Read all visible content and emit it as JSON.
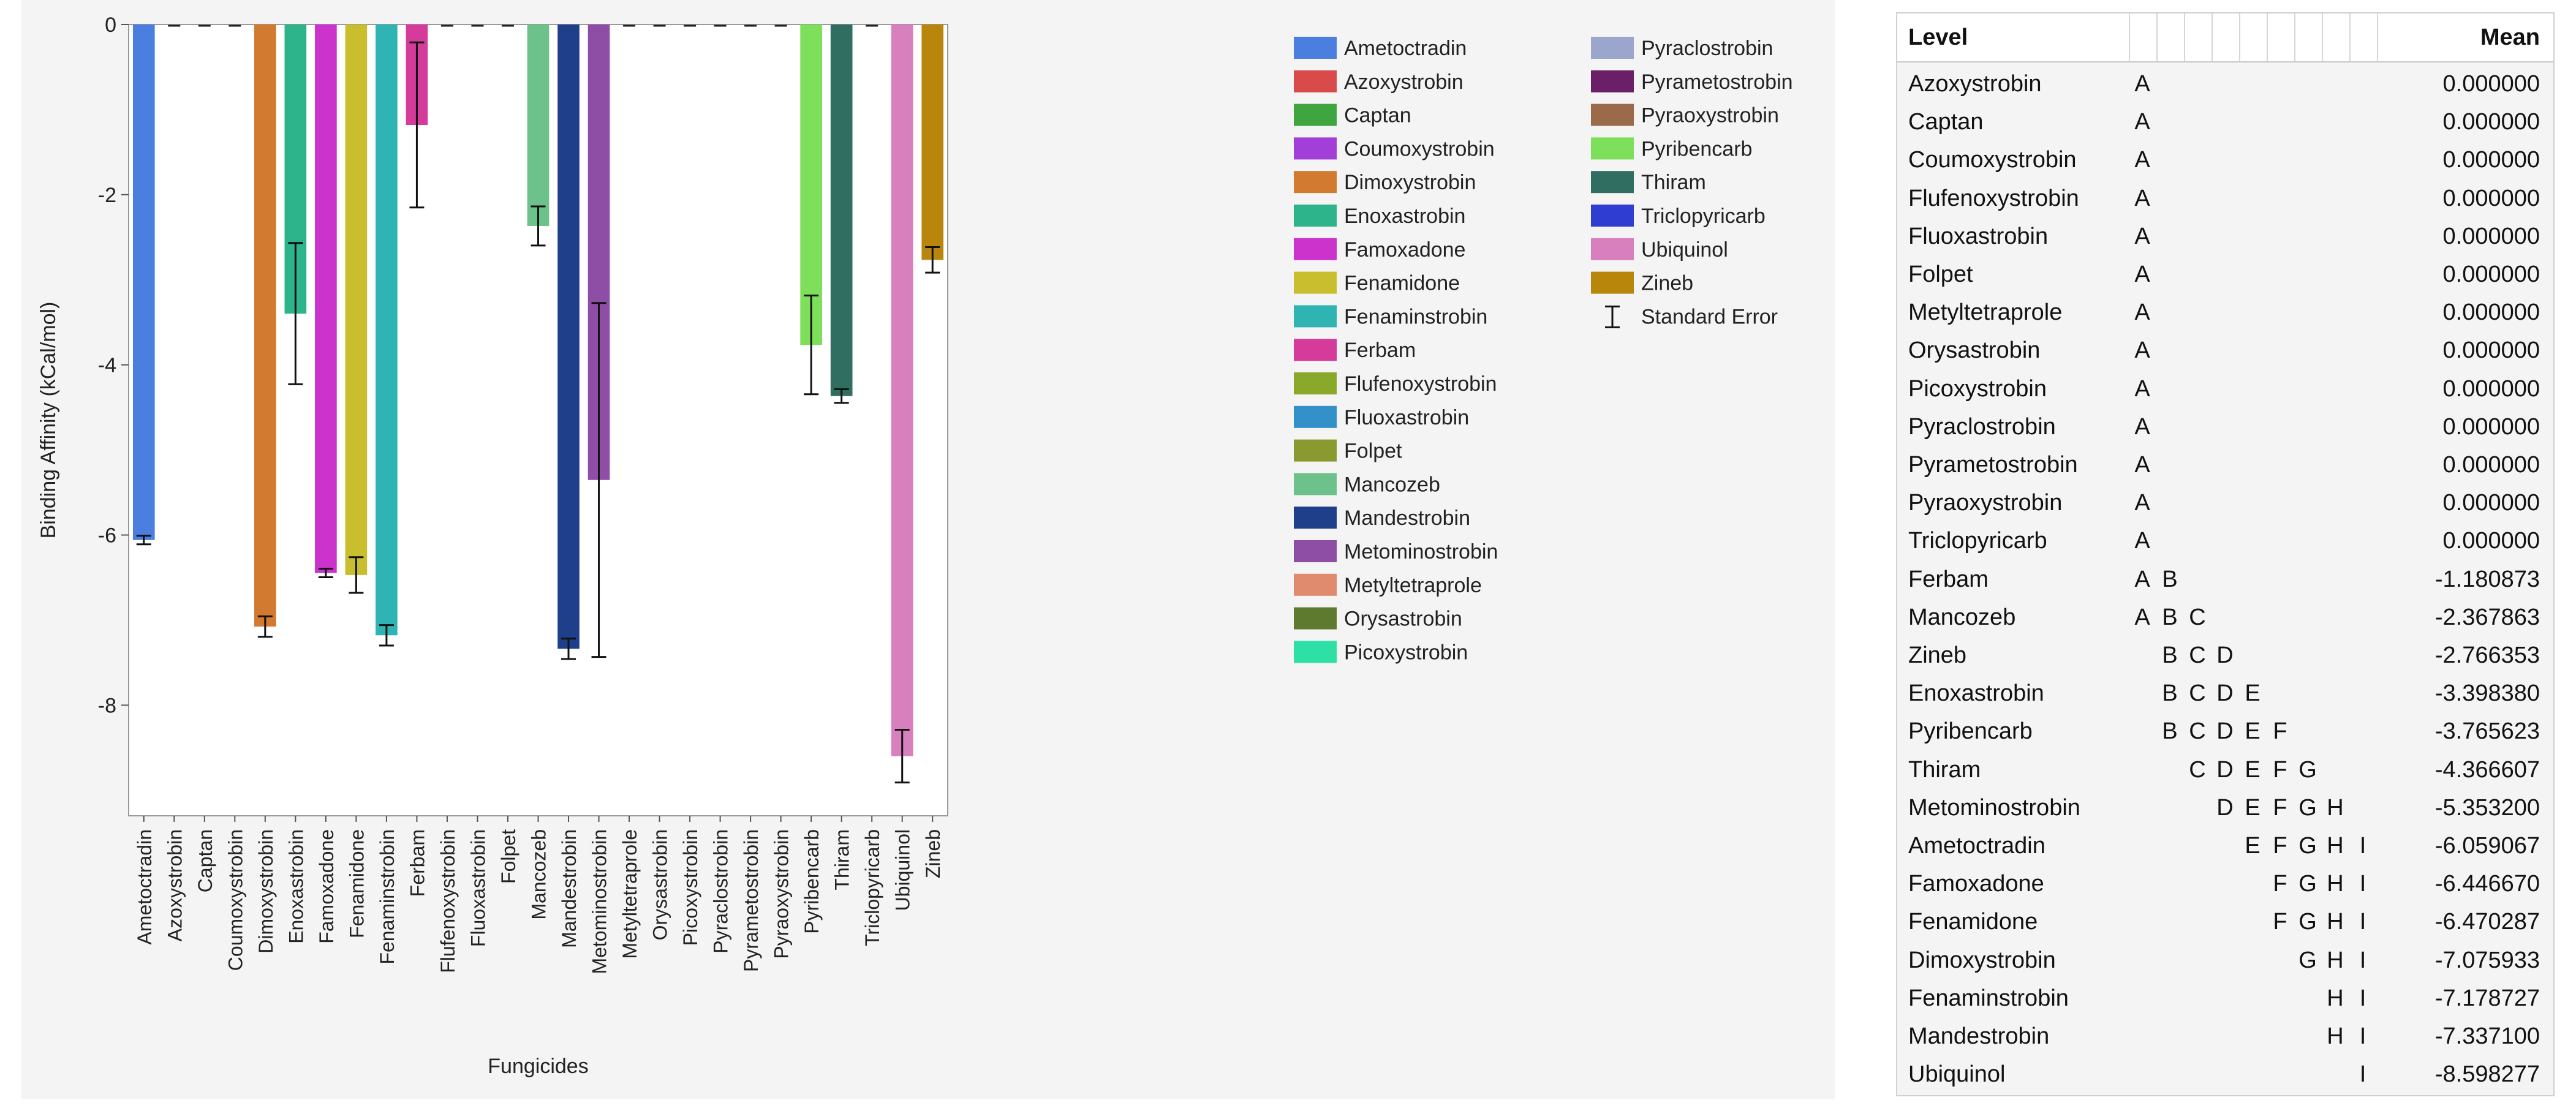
{
  "chart_data": {
    "type": "bar",
    "xlabel": "Fungicides",
    "ylabel": "Binding Affinity (kCal/mol)",
    "ylim": [
      -9.3,
      0
    ],
    "yticks": [
      0,
      -2,
      -4,
      -6,
      -8
    ],
    "grid": false,
    "legend_position": "right",
    "categories": [
      "Ametoctradin",
      "Azoxystrobin",
      "Captan",
      "Coumoxystrobin",
      "Dimoxystrobin",
      "Enoxastrobin",
      "Famoxadone",
      "Fenamidone",
      "Fenaminstrobin",
      "Ferbam",
      "Flufenoxystrobin",
      "Fluoxastrobin",
      "Folpet",
      "Mancozeb",
      "Mandestrobin",
      "Metominostrobin",
      "Metyltetraprole",
      "Orysastrobin",
      "Picoxystrobin",
      "Pyraclostrobin",
      "Pyrametostrobin",
      "Pyraoxystrobin",
      "Pyribencarb",
      "Thiram",
      "Triclopyricarb",
      "Ubiquinol",
      "Zineb"
    ],
    "values": [
      -6.059067,
      0,
      0,
      0,
      -7.075933,
      -3.39838,
      -6.44667,
      -6.470287,
      -7.178727,
      -1.180873,
      0,
      0,
      0,
      -2.367863,
      -7.3371,
      -5.3532,
      0,
      0,
      0,
      0,
      0,
      0,
      -3.765623,
      -4.366607,
      0,
      -8.598277,
      -2.766353
    ],
    "error": [
      0.05,
      0,
      0,
      0,
      0.12,
      0.83,
      0.05,
      0.21,
      0.12,
      0.97,
      0,
      0,
      0,
      0.23,
      0.12,
      2.08,
      0,
      0,
      0,
      0,
      0,
      0,
      0.58,
      0.08,
      0,
      0.31,
      0.15
    ],
    "colors": [
      "#4a7fe0",
      "#d94b4b",
      "#3fa63f",
      "#a23fd9",
      "#d17a30",
      "#2eb48a",
      "#cc33cc",
      "#c9bf2e",
      "#2fb3b3",
      "#d43b9a",
      "#8aa82a",
      "#3390c9",
      "#8a9a30",
      "#6cc28a",
      "#1f3f8a",
      "#8f4ea6",
      "#e08a6e",
      "#5e7a2e",
      "#2ee0a6",
      "#9aa6cc",
      "#6a1f66",
      "#9a6a4a",
      "#7ee05a",
      "#2f6e60",
      "#2f3ed0",
      "#d87fbe",
      "#b8860b"
    ],
    "legend": {
      "items": [
        "Ametoctradin",
        "Azoxystrobin",
        "Captan",
        "Coumoxystrobin",
        "Dimoxystrobin",
        "Enoxastrobin",
        "Famoxadone",
        "Fenamidone",
        "Fenaminstrobin",
        "Ferbam",
        "Flufenoxystrobin",
        "Fluoxastrobin",
        "Folpet",
        "Mancozeb",
        "Mandestrobin",
        "Metominostrobin",
        "Metyltetraprole",
        "Orysastrobin",
        "Picoxystrobin",
        "Pyraclostrobin",
        "Pyrametostrobin",
        "Pyraoxystrobin",
        "Pyribencarb",
        "Thiram",
        "Triclopyricarb",
        "Ubiquinol",
        "Zineb"
      ],
      "error_label": "Standard Error"
    }
  },
  "table": {
    "header_level": "Level",
    "header_mean": "Mean",
    "rows": [
      {
        "level": "Azoxystrobin",
        "letters": [
          "A",
          "",
          "",
          "",
          "",
          "",
          "",
          "",
          ""
        ],
        "mean": "0.000000"
      },
      {
        "level": "Captan",
        "letters": [
          "A",
          "",
          "",
          "",
          "",
          "",
          "",
          "",
          ""
        ],
        "mean": "0.000000"
      },
      {
        "level": "Coumoxystrobin",
        "letters": [
          "A",
          "",
          "",
          "",
          "",
          "",
          "",
          "",
          ""
        ],
        "mean": "0.000000"
      },
      {
        "level": "Flufenoxystrobin",
        "letters": [
          "A",
          "",
          "",
          "",
          "",
          "",
          "",
          "",
          ""
        ],
        "mean": "0.000000"
      },
      {
        "level": "Fluoxastrobin",
        "letters": [
          "A",
          "",
          "",
          "",
          "",
          "",
          "",
          "",
          ""
        ],
        "mean": "0.000000"
      },
      {
        "level": "Folpet",
        "letters": [
          "A",
          "",
          "",
          "",
          "",
          "",
          "",
          "",
          ""
        ],
        "mean": "0.000000"
      },
      {
        "level": "Metyltetraprole",
        "letters": [
          "A",
          "",
          "",
          "",
          "",
          "",
          "",
          "",
          ""
        ],
        "mean": "0.000000"
      },
      {
        "level": "Orysastrobin",
        "letters": [
          "A",
          "",
          "",
          "",
          "",
          "",
          "",
          "",
          ""
        ],
        "mean": "0.000000"
      },
      {
        "level": "Picoxystrobin",
        "letters": [
          "A",
          "",
          "",
          "",
          "",
          "",
          "",
          "",
          ""
        ],
        "mean": "0.000000"
      },
      {
        "level": "Pyraclostrobin",
        "letters": [
          "A",
          "",
          "",
          "",
          "",
          "",
          "",
          "",
          ""
        ],
        "mean": "0.000000"
      },
      {
        "level": "Pyrametostrobin",
        "letters": [
          "A",
          "",
          "",
          "",
          "",
          "",
          "",
          "",
          ""
        ],
        "mean": "0.000000"
      },
      {
        "level": "Pyraoxystrobin",
        "letters": [
          "A",
          "",
          "",
          "",
          "",
          "",
          "",
          "",
          ""
        ],
        "mean": "0.000000"
      },
      {
        "level": "Triclopyricarb",
        "letters": [
          "A",
          "",
          "",
          "",
          "",
          "",
          "",
          "",
          ""
        ],
        "mean": "0.000000"
      },
      {
        "level": "Ferbam",
        "letters": [
          "A",
          "B",
          "",
          "",
          "",
          "",
          "",
          "",
          ""
        ],
        "mean": "-1.180873"
      },
      {
        "level": "Mancozeb",
        "letters": [
          "A",
          "B",
          "C",
          "",
          "",
          "",
          "",
          "",
          ""
        ],
        "mean": "-2.367863"
      },
      {
        "level": "Zineb",
        "letters": [
          "",
          "B",
          "C",
          "D",
          "",
          "",
          "",
          "",
          ""
        ],
        "mean": "-2.766353"
      },
      {
        "level": "Enoxastrobin",
        "letters": [
          "",
          "B",
          "C",
          "D",
          "E",
          "",
          "",
          "",
          ""
        ],
        "mean": "-3.398380"
      },
      {
        "level": "Pyribencarb",
        "letters": [
          "",
          "B",
          "C",
          "D",
          "E",
          "F",
          "",
          "",
          ""
        ],
        "mean": "-3.765623"
      },
      {
        "level": "Thiram",
        "letters": [
          "",
          "",
          "C",
          "D",
          "E",
          "F",
          "G",
          "",
          ""
        ],
        "mean": "-4.366607"
      },
      {
        "level": "Metominostrobin",
        "letters": [
          "",
          "",
          "",
          "D",
          "E",
          "F",
          "G",
          "H",
          ""
        ],
        "mean": "-5.353200"
      },
      {
        "level": "Ametoctradin",
        "letters": [
          "",
          "",
          "",
          "",
          "E",
          "F",
          "G",
          "H",
          "I"
        ],
        "mean": "-6.059067"
      },
      {
        "level": "Famoxadone",
        "letters": [
          "",
          "",
          "",
          "",
          "",
          "F",
          "G",
          "H",
          "I"
        ],
        "mean": "-6.446670"
      },
      {
        "level": "Fenamidone",
        "letters": [
          "",
          "",
          "",
          "",
          "",
          "F",
          "G",
          "H",
          "I"
        ],
        "mean": "-6.470287"
      },
      {
        "level": "Dimoxystrobin",
        "letters": [
          "",
          "",
          "",
          "",
          "",
          "",
          "G",
          "H",
          "I"
        ],
        "mean": "-7.075933"
      },
      {
        "level": "Fenaminstrobin",
        "letters": [
          "",
          "",
          "",
          "",
          "",
          "",
          "",
          "H",
          "I"
        ],
        "mean": "-7.178727"
      },
      {
        "level": "Mandestrobin",
        "letters": [
          "",
          "",
          "",
          "",
          "",
          "",
          "",
          "H",
          "I"
        ],
        "mean": "-7.337100"
      },
      {
        "level": "Ubiquinol",
        "letters": [
          "",
          "",
          "",
          "",
          "",
          "",
          "",
          "",
          "I"
        ],
        "mean": "-8.598277"
      }
    ]
  }
}
